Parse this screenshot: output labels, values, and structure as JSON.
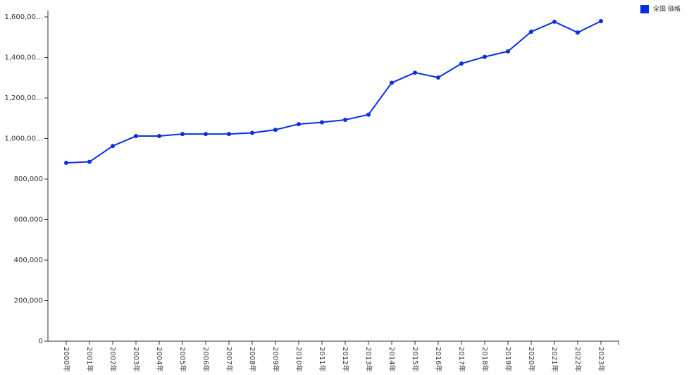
{
  "chart_data": {
    "type": "line",
    "categories": [
      "2000年",
      "2001年",
      "2002年",
      "2003年",
      "2004年",
      "2005年",
      "2006年",
      "2007年",
      "2008年",
      "2009年",
      "2010年",
      "2011年",
      "2012年",
      "2013年",
      "2014年",
      "2015年",
      "2016年",
      "2017年",
      "2018年",
      "2019年",
      "2020年",
      "2021年",
      "2022年",
      "2023年"
    ],
    "series": [
      {
        "name": "全国 価格",
        "color": "#0a2fe0",
        "values": [
          880000,
          885000,
          963000,
          1012000,
          1012000,
          1022000,
          1022000,
          1022000,
          1028000,
          1043000,
          1071000,
          1080000,
          1092000,
          1118000,
          1275000,
          1325000,
          1301000,
          1370000,
          1403000,
          1430000,
          1527000,
          1576000,
          1523000,
          1579000
        ]
      }
    ],
    "ylim": [
      0,
      1600000
    ],
    "yticks": [
      0,
      {
        "value": 200000,
        "label": "200,000"
      },
      {
        "value": 400000,
        "label": "400,000"
      },
      {
        "value": 600000,
        "label": "600,000"
      },
      {
        "value": 800000,
        "label": "800,000"
      },
      {
        "value": 1000000,
        "label": "1,000,00…"
      },
      {
        "value": 1200000,
        "label": "1,200,00…"
      },
      {
        "value": 1400000,
        "label": "1,400,00…"
      },
      {
        "value": 1600000,
        "label": "1,600,00…"
      }
    ],
    "grid": false,
    "legend": "top-right"
  }
}
